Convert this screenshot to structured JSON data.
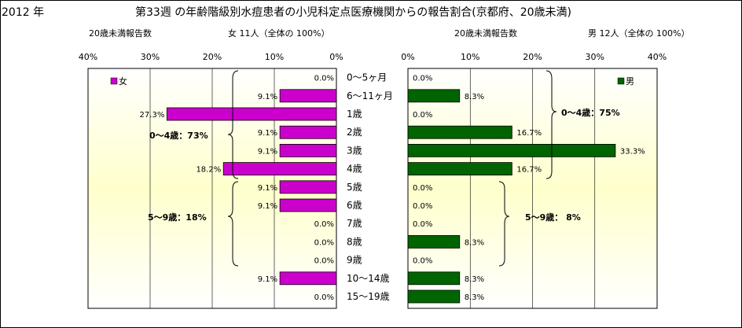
{
  "header": {
    "year": "2012 年",
    "title": "第33週 の年齢階級別水痘患者の小児科定点医療機関からの報告割合(京都府、20歳未満)"
  },
  "left_panel": {
    "count_label": "20歳未満報告数",
    "summary": "女 11人（全体の 100%）",
    "legend": "女",
    "group1": "0～4歳：73%",
    "group2": "5～9歳：18%"
  },
  "right_panel": {
    "count_label": "20歳未満報告数",
    "summary": "男 12人（全体の 100%）",
    "legend": "男",
    "group1": "0～4歳：75%",
    "group2": "5～9歳： 8%"
  },
  "chart_data": [
    {
      "type": "bar",
      "orientation": "horizontal",
      "direction": "right-to-left",
      "categories": [
        "0～5ヶ月",
        "6～11ヶ月",
        "1歳",
        "2歳",
        "3歳",
        "4歳",
        "5歳",
        "6歳",
        "7歳",
        "8歳",
        "9歳",
        "10～14歳",
        "15～19歳"
      ],
      "series": [
        {
          "name": "女",
          "values": [
            0.0,
            9.1,
            27.3,
            9.1,
            9.1,
            18.2,
            9.1,
            9.1,
            0.0,
            0.0,
            0.0,
            9.1,
            0.0
          ]
        }
      ],
      "value_labels": [
        "0.0%",
        "9.1%",
        "27.3%",
        "9.1%",
        "9.1%",
        "18.2%",
        "9.1%",
        "9.1%",
        "0.0%",
        "0.0%",
        "0.0%",
        "9.1%",
        "0.0%"
      ],
      "xlim": [
        0,
        40
      ],
      "ticks": [
        "40%",
        "30%",
        "20%",
        "10%",
        "0%"
      ],
      "color": "#cc00cc",
      "legend_position": "top-left"
    },
    {
      "type": "bar",
      "orientation": "horizontal",
      "direction": "left-to-right",
      "categories": [
        "0～5ヶ月",
        "6～11ヶ月",
        "1歳",
        "2歳",
        "3歳",
        "4歳",
        "5歳",
        "6歳",
        "7歳",
        "8歳",
        "9歳",
        "10～14歳",
        "15～19歳"
      ],
      "series": [
        {
          "name": "男",
          "values": [
            0.0,
            8.3,
            0.0,
            16.7,
            33.3,
            16.7,
            0.0,
            0.0,
            0.0,
            8.3,
            0.0,
            8.3,
            8.3
          ]
        }
      ],
      "value_labels": [
        "0.0%",
        "8.3%",
        "0.0%",
        "16.7%",
        "33.3%",
        "16.7%",
        "0.0%",
        "0.0%",
        "0.0%",
        "8.3%",
        "0.0%",
        "8.3%",
        "8.3%"
      ],
      "xlim": [
        0,
        40
      ],
      "ticks": [
        "0%",
        "10%",
        "20%",
        "30%",
        "40%"
      ],
      "color": "#006400",
      "legend_position": "top-right"
    }
  ]
}
